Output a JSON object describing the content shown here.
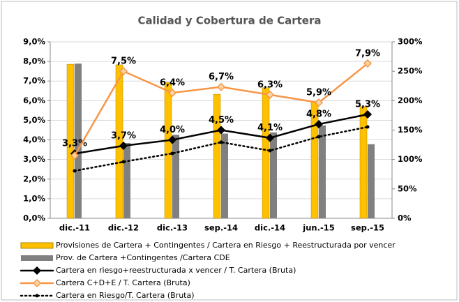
{
  "chart_data": {
    "type": "bar-line",
    "title": "Calidad y Cobertura de Cartera",
    "categories": [
      "dic.-11",
      "dic.-12",
      "dic.-13",
      "sep.-14",
      "dic.-14",
      "jun.-15",
      "sep.-15"
    ],
    "series": [
      {
        "name": "Provisiones de Cartera + Contingentes / Cartera en Riesgo + Reestructurada por vencer",
        "type": "bar",
        "axis": "y2",
        "color": "#ffc000",
        "values": [
          262,
          261,
          231,
          211,
          222,
          198,
          190
        ]
      },
      {
        "name": "Prov. de Cartera +Contingentes /Cartera CDE",
        "type": "bar",
        "axis": "y2",
        "color": "#808080",
        "values": [
          263,
          128,
          142,
          144,
          146,
          158,
          126
        ]
      },
      {
        "name": "Cartera en riesgo+reestructurada x vencer / T. Cartera (Bruta)",
        "type": "line",
        "axis": "y",
        "color": "#000000",
        "marker": "diamond",
        "values": [
          3.3,
          3.7,
          4.0,
          4.5,
          4.1,
          4.8,
          5.3
        ],
        "value_labels": [
          "3,3%",
          "3,7%",
          "4,0%",
          "4,5%",
          "4,1%",
          "4,8%",
          "5,3%"
        ]
      },
      {
        "name": "Cartera C+D+E / T. Cartera  (Bruta)",
        "type": "line",
        "axis": "y",
        "color": "#f79646",
        "marker": "diamond",
        "values": [
          3.2,
          7.5,
          6.4,
          6.7,
          6.3,
          5.9,
          7.9
        ],
        "value_labels": [
          null,
          "7,5%",
          "6,4%",
          "6,7%",
          "6,3%",
          "5,9%",
          "7,9%"
        ]
      },
      {
        "name": "Cartera en Riesgo/T. Cartera (Bruta)",
        "type": "line",
        "axis": "y",
        "color": "#000000",
        "dash": "dotted",
        "marker": "circle",
        "values": [
          2.42,
          2.88,
          3.31,
          3.88,
          3.45,
          4.16,
          4.66
        ]
      }
    ],
    "ylim": [
      0,
      9
    ],
    "yticks": [
      {
        "value": 0,
        "label": "0,0%"
      },
      {
        "value": 1,
        "label": "1,0%"
      },
      {
        "value": 2,
        "label": "2,0%"
      },
      {
        "value": 3,
        "label": "3,0%"
      },
      {
        "value": 4,
        "label": "4,0%"
      },
      {
        "value": 5,
        "label": "5,0%"
      },
      {
        "value": 6,
        "label": "6,0%"
      },
      {
        "value": 7,
        "label": "7,0%"
      },
      {
        "value": 8,
        "label": "8,0%"
      },
      {
        "value": 9,
        "label": "9,0%"
      }
    ],
    "y2lim": [
      0,
      300
    ],
    "y2ticks": [
      {
        "value": 0,
        "label": "0%"
      },
      {
        "value": 50,
        "label": "50%"
      },
      {
        "value": 100,
        "label": "100%"
      },
      {
        "value": 150,
        "label": "150%"
      },
      {
        "value": 200,
        "label": "200%"
      },
      {
        "value": 250,
        "label": "250%"
      },
      {
        "value": 300,
        "label": "300%"
      }
    ],
    "grid": true,
    "legend": "bottom"
  }
}
